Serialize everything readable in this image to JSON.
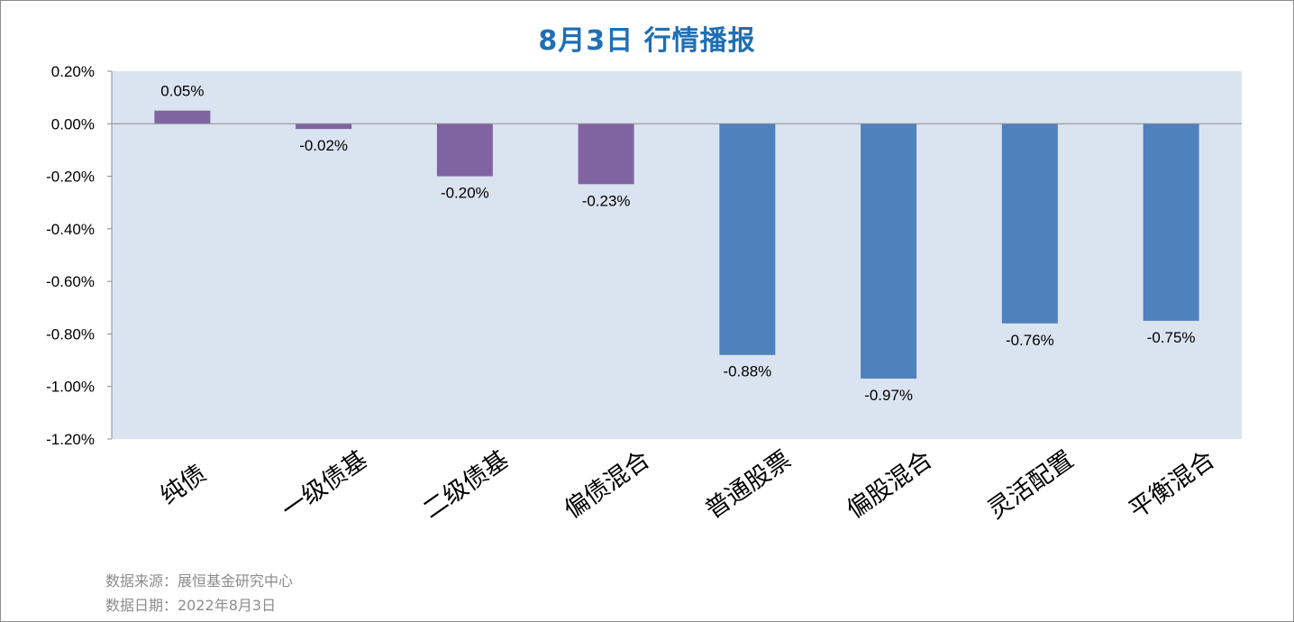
{
  "title": "8月3日  行情播报",
  "footer": {
    "source": "数据来源：展恒基金研究中心",
    "date": "数据日期：2022年8月3日"
  },
  "colors": {
    "plot_background": "#dae3f0",
    "bond_series": "#8064a2",
    "equity_series": "#4f81bd",
    "title": "#1f6fb5",
    "footer_text": "#8c8c8c"
  },
  "chart_data": {
    "type": "bar",
    "title": "8月3日  行情播报",
    "xlabel": "",
    "ylabel": "",
    "categories": [
      "纯债",
      "一级债基",
      "二级债基",
      "偏债混合",
      "普通股票",
      "偏股混合",
      "灵活配置",
      "平衡混合"
    ],
    "values": [
      0.05,
      -0.02,
      -0.2,
      -0.23,
      -0.88,
      -0.97,
      -0.76,
      -0.75
    ],
    "value_labels": [
      "0.05%",
      "-0.02%",
      "-0.20%",
      "-0.23%",
      "-0.88%",
      "-0.97%",
      "-0.76%",
      "-0.75%"
    ],
    "bar_colors": [
      "#8064a2",
      "#8064a2",
      "#8064a2",
      "#8064a2",
      "#4f81bd",
      "#4f81bd",
      "#4f81bd",
      "#4f81bd"
    ],
    "ylim": [
      -1.2,
      0.2
    ],
    "yticks": [
      0.2,
      0.0,
      -0.2,
      -0.4,
      -0.6,
      -0.8,
      -1.0,
      -1.2
    ],
    "ytick_labels": [
      "0.20%",
      "0.00%",
      "-0.20%",
      "-0.40%",
      "-0.60%",
      "-0.80%",
      "-1.00%",
      "-1.20%"
    ],
    "grid": false,
    "legend": "none"
  }
}
